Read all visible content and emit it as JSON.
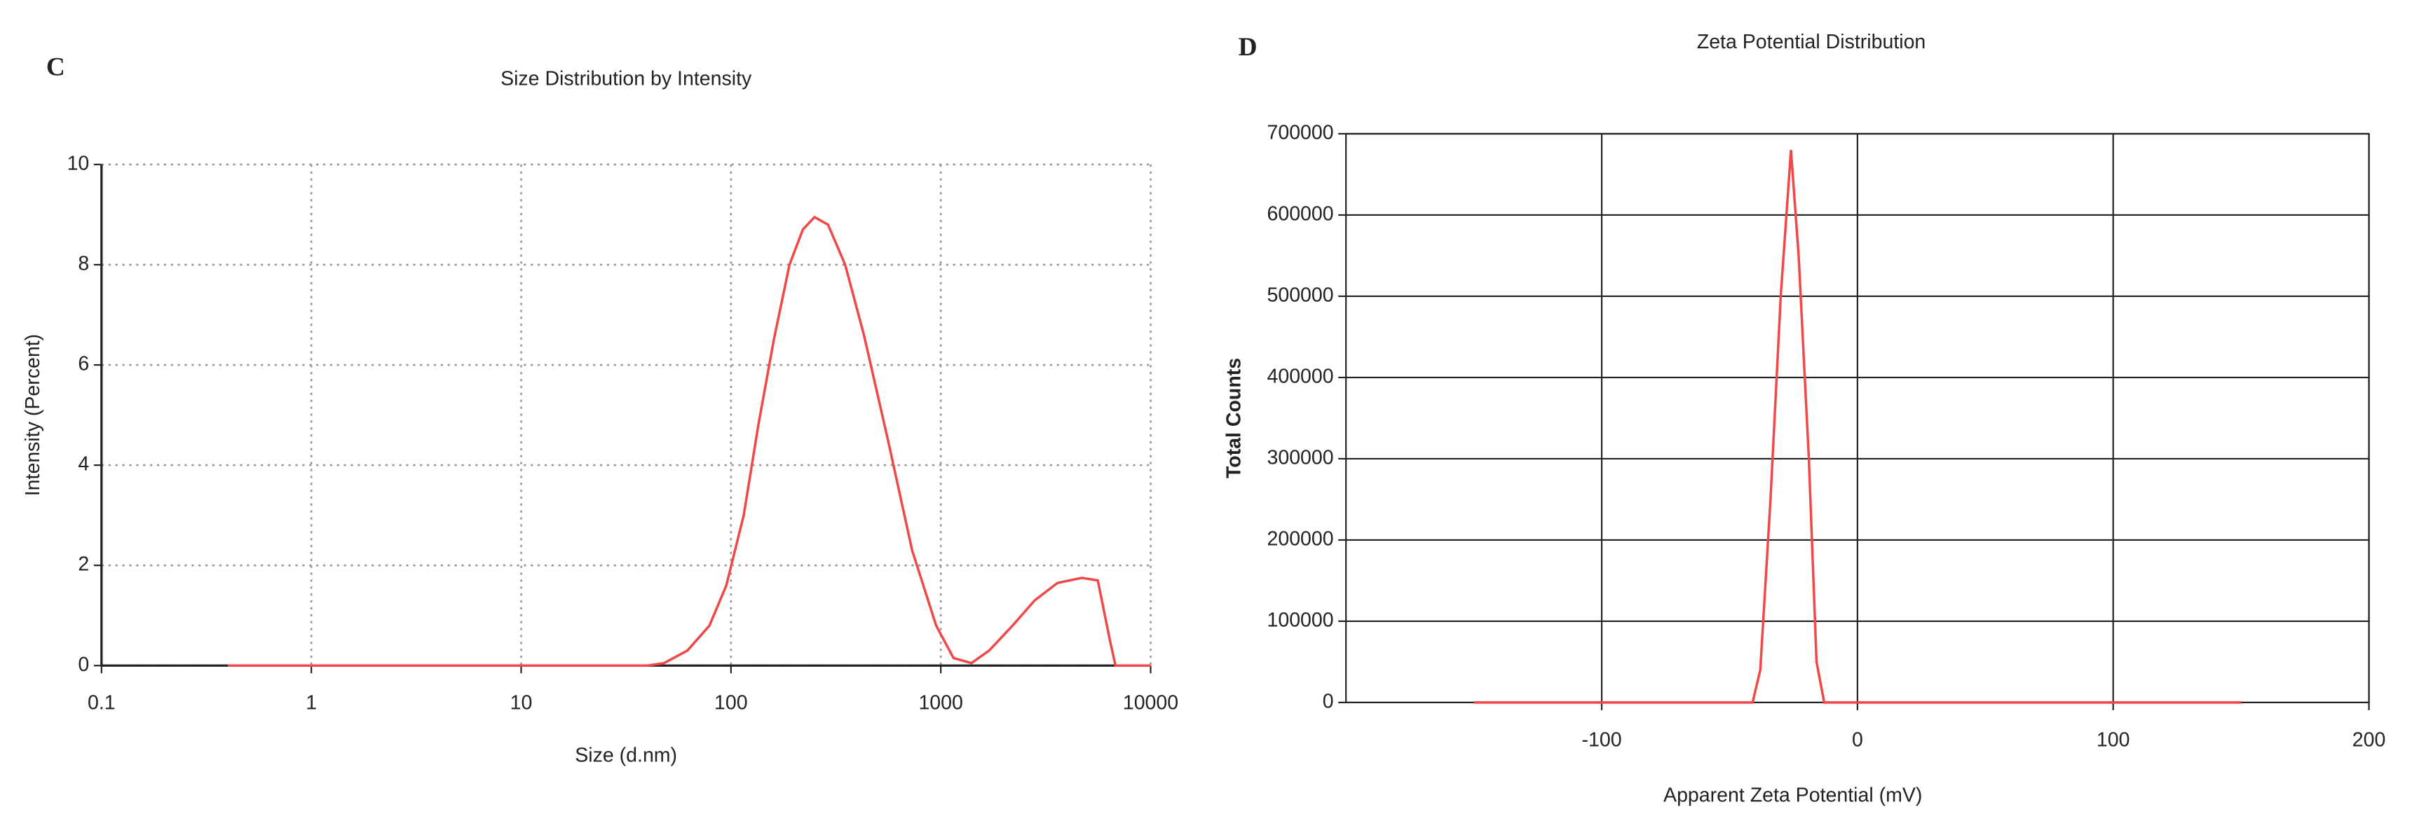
{
  "chart_data": [
    {
      "panel": "C",
      "type": "line",
      "title": "Size Distribution by Intensity",
      "x_label": "Size (d.nm)",
      "y_label": "Intensity (Percent)",
      "log_x": true,
      "grid": "dotted",
      "color": "#f04848",
      "xlim": [
        0.1,
        10000
      ],
      "xticks": [
        0.1,
        1,
        10,
        100,
        1000,
        10000
      ],
      "ylim": [
        0,
        10
      ],
      "yticks": [
        0,
        2,
        4,
        6,
        8,
        10
      ],
      "x": [
        0.4,
        1,
        10,
        40,
        48,
        62,
        79,
        95,
        115,
        135,
        160,
        190,
        220,
        250,
        290,
        350,
        430,
        560,
        730,
        950,
        1150,
        1400,
        1700,
        2200,
        2800,
        3600,
        4700,
        5600,
        6400,
        6800,
        10000
      ],
      "values": [
        0,
        0,
        0,
        0,
        0.05,
        0.3,
        0.8,
        1.6,
        3,
        4.8,
        6.5,
        8,
        8.7,
        8.95,
        8.8,
        8,
        6.6,
        4.5,
        2.3,
        0.8,
        0.15,
        0.05,
        0.3,
        0.8,
        1.3,
        1.65,
        1.75,
        1.7,
        0.5,
        0,
        0
      ]
    },
    {
      "panel": "D",
      "type": "line",
      "title": "Zeta Potential Distribution",
      "x_label": "Apparent Zeta Potential (mV)",
      "y_label": "Total Counts",
      "log_x": false,
      "grid": "solid",
      "color": "#f04848",
      "xlim": [
        -200,
        200
      ],
      "xticks": [
        -100,
        0,
        100,
        200
      ],
      "ylim": [
        0,
        700000
      ],
      "yticks": [
        0,
        100000,
        200000,
        300000,
        400000,
        500000,
        600000,
        700000
      ],
      "x": [
        -150,
        -41,
        -38,
        -34,
        -30,
        -26,
        -23,
        -19,
        -16,
        -13,
        150
      ],
      "values": [
        0,
        0,
        40000,
        250000,
        500000,
        680000,
        550000,
        300000,
        50000,
        0,
        0
      ]
    }
  ]
}
